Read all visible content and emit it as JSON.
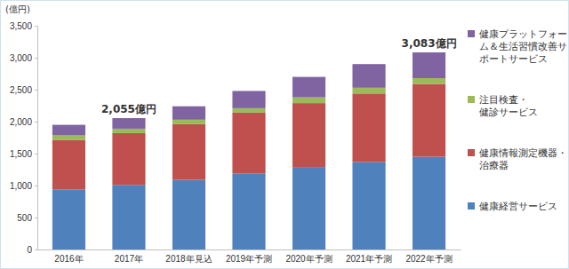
{
  "chart_data": {
    "type": "bar",
    "stacked": true,
    "y_label": "(億円)",
    "categories": [
      "2016年",
      "2017年",
      "2018年見込",
      "2019年予測",
      "2020年予測",
      "2021年予測",
      "2022年予測"
    ],
    "series": [
      {
        "name": "健康経営サービス",
        "color": "#4f81bd",
        "values": [
          940,
          1010,
          1090,
          1190,
          1290,
          1370,
          1450
        ]
      },
      {
        "name": "健康情報測定機器・治療器",
        "color": "#c0504d",
        "values": [
          775,
          810,
          870,
          950,
          1000,
          1070,
          1140
        ]
      },
      {
        "name": "注目検査・健診サービス",
        "color": "#9bbb59",
        "values": [
          70,
          70,
          70,
          70,
          90,
          90,
          90
        ]
      },
      {
        "name": "健康プラットフォーム＆生活習慣改善サポートサービス",
        "color": "#8064a2",
        "values": [
          165,
          165,
          210,
          270,
          320,
          370,
          403
        ]
      }
    ],
    "ylim": [
      0,
      3500
    ],
    "yticks": [
      0,
      500,
      {
        "value": 1000,
        "label": "1,000"
      },
      {
        "value": 1500,
        "label": "1,500"
      },
      {
        "value": 2000,
        "label": "2,000"
      },
      {
        "value": 2500,
        "label": "2,500"
      },
      {
        "value": 3000,
        "label": "3,000"
      },
      {
        "value": 3500,
        "label": "3,500"
      }
    ],
    "grid": false,
    "legend": "right",
    "data_labels": false,
    "annotations": [
      {
        "text": "2,055億円",
        "x": "2017年"
      },
      {
        "text": "3,083億円",
        "x": "2022年予測"
      }
    ]
  }
}
